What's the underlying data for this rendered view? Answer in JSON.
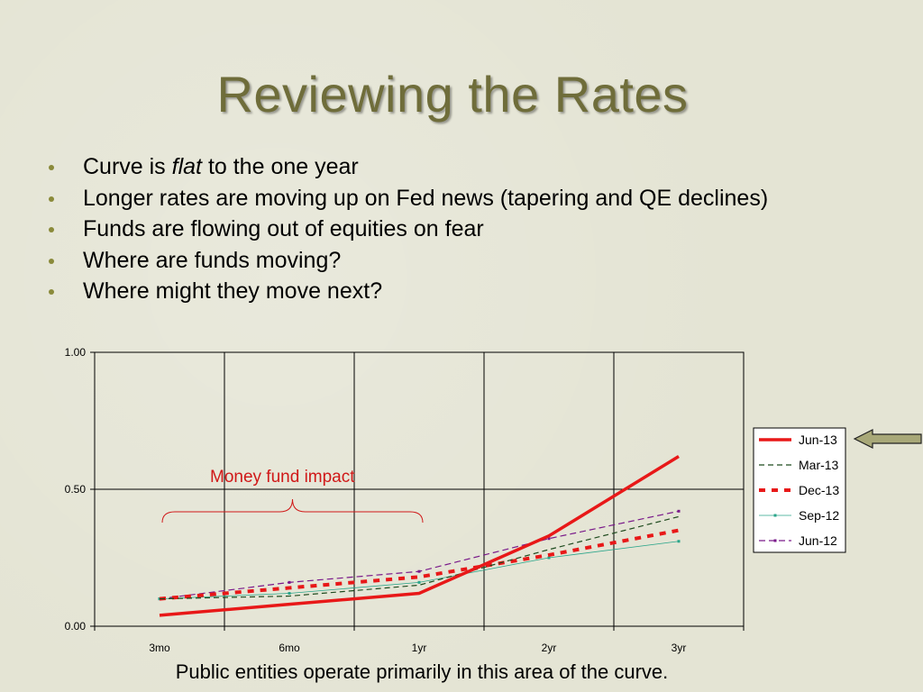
{
  "slide": {
    "title": "Reviewing the Rates",
    "bullets": [
      {
        "before": "Curve is ",
        "emph": "flat",
        "after": " to the one year"
      },
      {
        "before": "Longer rates are moving up on Fed news (tapering and QE declines)",
        "emph": "",
        "after": ""
      },
      {
        "before": "Funds are flowing out of equities on fear",
        "emph": "",
        "after": ""
      },
      {
        "before": "Where are funds moving?",
        "emph": "",
        "after": ""
      },
      {
        "before": "Where might they move next?",
        "emph": "",
        "after": ""
      }
    ],
    "annotation": "Money fund impact",
    "caption": "Public entities operate primarily in this area of the curve."
  },
  "chart_data": {
    "type": "line",
    "categories": [
      "3mo",
      "6mo",
      "1yr",
      "2yr",
      "3yr"
    ],
    "ylim": [
      0,
      1
    ],
    "y_ticks": [
      "0.00",
      "0.50",
      "1.00"
    ],
    "grid": true,
    "legend": "right",
    "series": [
      {
        "name": "Jun-13",
        "values": [
          0.04,
          0.08,
          0.12,
          0.33,
          0.62
        ],
        "color": "#e81818",
        "style": "solid-thick"
      },
      {
        "name": "Mar-13",
        "values": [
          0.1,
          0.11,
          0.15,
          0.28,
          0.4
        ],
        "color": "#1e4a1e",
        "style": "dashed"
      },
      {
        "name": "Dec-13",
        "values": [
          0.1,
          0.14,
          0.18,
          0.26,
          0.35
        ],
        "color": "#e81818",
        "style": "dotted-thick"
      },
      {
        "name": "Sep-12",
        "values": [
          0.1,
          0.12,
          0.16,
          0.25,
          0.31
        ],
        "color": "#2aa58a",
        "style": "thin-marker"
      },
      {
        "name": "Jun-12",
        "values": [
          0.1,
          0.16,
          0.2,
          0.32,
          0.42
        ],
        "color": "#7a1a8a",
        "style": "dashed-marker"
      }
    ]
  }
}
